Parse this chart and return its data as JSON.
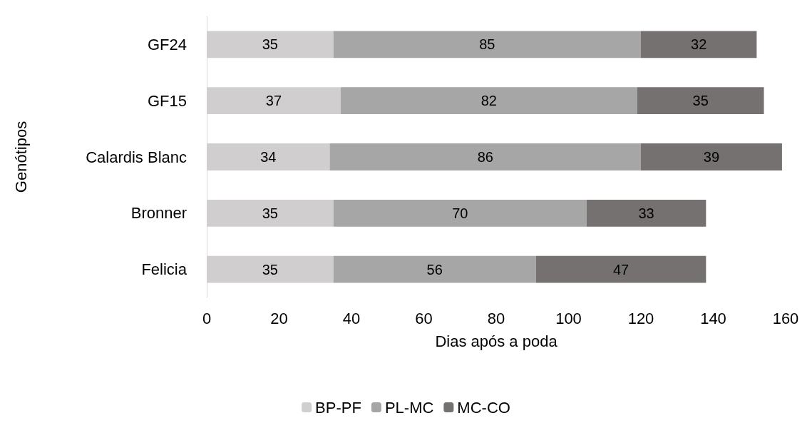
{
  "chart_data": {
    "type": "bar",
    "orientation": "horizontal",
    "stacked": true,
    "xlabel": "Dias após a poda",
    "ylabel": "Genótipos",
    "categories": [
      "GF24",
      "GF15",
      "Calardis Blanc",
      "Bronner",
      "Felicia"
    ],
    "series": [
      {
        "name": "BP-PF",
        "color": "#d0cece",
        "values": [
          35,
          37,
          34,
          35,
          35
        ]
      },
      {
        "name": "PL-MC",
        "color": "#a6a6a6",
        "values": [
          85,
          82,
          86,
          70,
          56
        ]
      },
      {
        "name": "MC-CO",
        "color": "#767171",
        "values": [
          32,
          35,
          39,
          33,
          47
        ]
      }
    ],
    "xlim": [
      0,
      160
    ],
    "xticks": [
      0,
      20,
      40,
      60,
      80,
      100,
      120,
      140,
      160
    ],
    "grid": false,
    "legend": "bottom",
    "data_labels": true
  }
}
